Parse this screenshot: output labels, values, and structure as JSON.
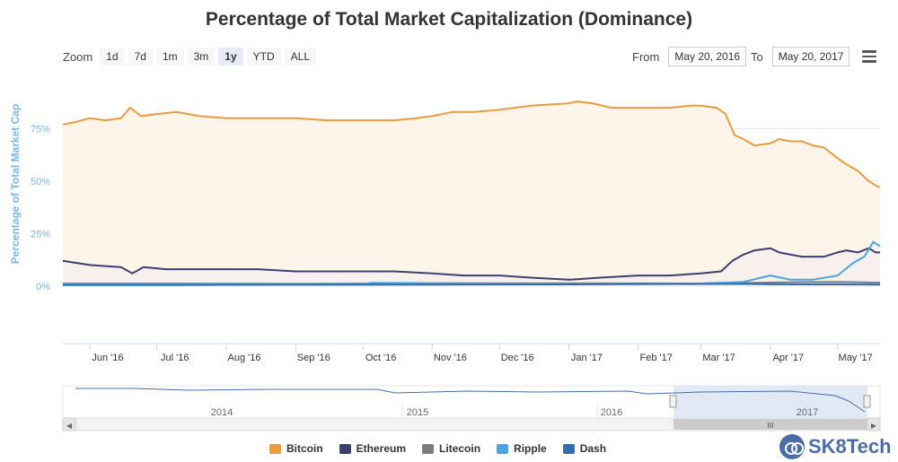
{
  "chart_title": "Percentage of Total Market Capitalization (Dominance)",
  "zoom": {
    "label": "Zoom",
    "buttons": [
      "1d",
      "7d",
      "1m",
      "3m",
      "1y",
      "YTD",
      "ALL"
    ],
    "active": "1y"
  },
  "range": {
    "from_label": "From",
    "from_value": "May 20, 2016",
    "to_label": "To",
    "to_value": "May 20, 2017"
  },
  "menu_icon": "hamburger-menu-icon",
  "brand": {
    "name": "SK8Tech",
    "icon": "link-logo-icon",
    "color": "#4a6da7"
  },
  "navigator": {
    "year_labels": [
      "2014",
      "2015",
      "2016",
      "2017"
    ],
    "scroll_handle_glyph": "III",
    "scroll_left_glyph": "◀",
    "scroll_right_glyph": "▶"
  },
  "chart_data": {
    "type": "line",
    "title": "Percentage of Total Market Capitalization (Dominance)",
    "ylabel": "Percentage of Total Market Cap",
    "ylim": [
      -0.5,
      100
    ],
    "y_ticks": [
      "0%",
      "25%",
      "50%",
      "75%"
    ],
    "y_tick_values": [
      0,
      25,
      50,
      75
    ],
    "x_range": [
      "2016-05-20",
      "2017-05-20"
    ],
    "x_ticks": [
      "Jun '16",
      "Jul '16",
      "Aug '16",
      "Sep '16",
      "Oct '16",
      "Nov '16",
      "Dec '16",
      "Jan '17",
      "Feb '17",
      "Mar '17",
      "Apr '17",
      "May '17"
    ],
    "x_tick_dates": [
      "2016-06-01",
      "2016-07-01",
      "2016-08-01",
      "2016-09-01",
      "2016-10-01",
      "2016-11-01",
      "2016-12-01",
      "2017-01-01",
      "2017-02-01",
      "2017-03-01",
      "2017-04-01",
      "2017-05-01"
    ],
    "grid": true,
    "legend_position": "bottom",
    "series": [
      {
        "name": "Bitcoin",
        "color": "#e89b3f",
        "fill": true,
        "points": [
          [
            "2016-05-20",
            77
          ],
          [
            "2016-05-25",
            78
          ],
          [
            "2016-06-01",
            80
          ],
          [
            "2016-06-08",
            79
          ],
          [
            "2016-06-15",
            80
          ],
          [
            "2016-06-19",
            85
          ],
          [
            "2016-06-24",
            81
          ],
          [
            "2016-07-01",
            82
          ],
          [
            "2016-07-10",
            83
          ],
          [
            "2016-07-20",
            81
          ],
          [
            "2016-08-01",
            80
          ],
          [
            "2016-08-15",
            80
          ],
          [
            "2016-09-01",
            80
          ],
          [
            "2016-09-15",
            79
          ],
          [
            "2016-10-01",
            79
          ],
          [
            "2016-10-15",
            79
          ],
          [
            "2016-10-25",
            80
          ],
          [
            "2016-11-01",
            81
          ],
          [
            "2016-11-10",
            83
          ],
          [
            "2016-11-20",
            83
          ],
          [
            "2016-12-01",
            84
          ],
          [
            "2016-12-15",
            86
          ],
          [
            "2016-12-31",
            87
          ],
          [
            "2017-01-05",
            88
          ],
          [
            "2017-01-12",
            87
          ],
          [
            "2017-01-20",
            85
          ],
          [
            "2017-02-01",
            85
          ],
          [
            "2017-02-15",
            85
          ],
          [
            "2017-02-25",
            86
          ],
          [
            "2017-03-01",
            86
          ],
          [
            "2017-03-08",
            85
          ],
          [
            "2017-03-12",
            82
          ],
          [
            "2017-03-16",
            72
          ],
          [
            "2017-03-20",
            70
          ],
          [
            "2017-03-25",
            67
          ],
          [
            "2017-04-01",
            68
          ],
          [
            "2017-04-05",
            70
          ],
          [
            "2017-04-10",
            69
          ],
          [
            "2017-04-15",
            69
          ],
          [
            "2017-04-20",
            67
          ],
          [
            "2017-04-25",
            66
          ],
          [
            "2017-05-01",
            61
          ],
          [
            "2017-05-05",
            58
          ],
          [
            "2017-05-10",
            55
          ],
          [
            "2017-05-15",
            50
          ],
          [
            "2017-05-18",
            48
          ],
          [
            "2017-05-20",
            47
          ]
        ]
      },
      {
        "name": "Ethereum",
        "color": "#3d3f6e",
        "fill": true,
        "points": [
          [
            "2016-05-20",
            12
          ],
          [
            "2016-06-01",
            10
          ],
          [
            "2016-06-15",
            9
          ],
          [
            "2016-06-20",
            6
          ],
          [
            "2016-06-25",
            9
          ],
          [
            "2016-07-05",
            8
          ],
          [
            "2016-07-20",
            8
          ],
          [
            "2016-08-01",
            8
          ],
          [
            "2016-08-15",
            8
          ],
          [
            "2016-09-01",
            7
          ],
          [
            "2016-09-15",
            7
          ],
          [
            "2016-10-01",
            7
          ],
          [
            "2016-10-15",
            7
          ],
          [
            "2016-11-01",
            6
          ],
          [
            "2016-11-15",
            5
          ],
          [
            "2016-12-01",
            5
          ],
          [
            "2016-12-15",
            4
          ],
          [
            "2017-01-01",
            3
          ],
          [
            "2017-01-15",
            4
          ],
          [
            "2017-02-01",
            5
          ],
          [
            "2017-02-15",
            5
          ],
          [
            "2017-03-01",
            6
          ],
          [
            "2017-03-10",
            7
          ],
          [
            "2017-03-15",
            12
          ],
          [
            "2017-03-20",
            15
          ],
          [
            "2017-03-25",
            17
          ],
          [
            "2017-04-01",
            18
          ],
          [
            "2017-04-05",
            16
          ],
          [
            "2017-04-15",
            14
          ],
          [
            "2017-04-25",
            14
          ],
          [
            "2017-05-01",
            16
          ],
          [
            "2017-05-05",
            17
          ],
          [
            "2017-05-10",
            16
          ],
          [
            "2017-05-15",
            18
          ],
          [
            "2017-05-18",
            16
          ],
          [
            "2017-05-20",
            16
          ]
        ]
      },
      {
        "name": "Litecoin",
        "color": "#7c7c7c",
        "fill": false,
        "points": [
          [
            "2016-05-20",
            1.2
          ],
          [
            "2016-07-01",
            1.2
          ],
          [
            "2016-09-01",
            1.1
          ],
          [
            "2016-11-01",
            1.3
          ],
          [
            "2017-01-01",
            1.3
          ],
          [
            "2017-03-01",
            1.2
          ],
          [
            "2017-03-25",
            1.5
          ],
          [
            "2017-04-10",
            1.8
          ],
          [
            "2017-05-01",
            2.0
          ],
          [
            "2017-05-10",
            1.8
          ],
          [
            "2017-05-20",
            1.5
          ]
        ]
      },
      {
        "name": "Ripple",
        "color": "#4aa5dc",
        "fill": false,
        "points": [
          [
            "2016-05-20",
            1.0
          ],
          [
            "2016-10-01",
            1.0
          ],
          [
            "2016-10-05",
            1.5
          ],
          [
            "2016-12-01",
            1.2
          ],
          [
            "2017-02-01",
            1.0
          ],
          [
            "2017-03-01",
            1.2
          ],
          [
            "2017-03-20",
            2.0
          ],
          [
            "2017-04-01",
            5.0
          ],
          [
            "2017-04-10",
            3.0
          ],
          [
            "2017-04-20",
            3.0
          ],
          [
            "2017-05-01",
            5.0
          ],
          [
            "2017-05-08",
            11.0
          ],
          [
            "2017-05-13",
            14.0
          ],
          [
            "2017-05-17",
            21.0
          ],
          [
            "2017-05-20",
            19.0
          ]
        ]
      },
      {
        "name": "Dash",
        "color": "#2f6eb0",
        "fill": false,
        "points": [
          [
            "2016-05-20",
            0.5
          ],
          [
            "2016-07-01",
            0.5
          ],
          [
            "2016-09-01",
            0.6
          ],
          [
            "2016-11-01",
            0.7
          ],
          [
            "2017-01-01",
            0.8
          ],
          [
            "2017-03-01",
            1.0
          ],
          [
            "2017-03-20",
            1.0
          ],
          [
            "2017-04-10",
            0.8
          ],
          [
            "2017-05-01",
            0.8
          ],
          [
            "2017-05-20",
            0.7
          ]
        ]
      }
    ]
  }
}
